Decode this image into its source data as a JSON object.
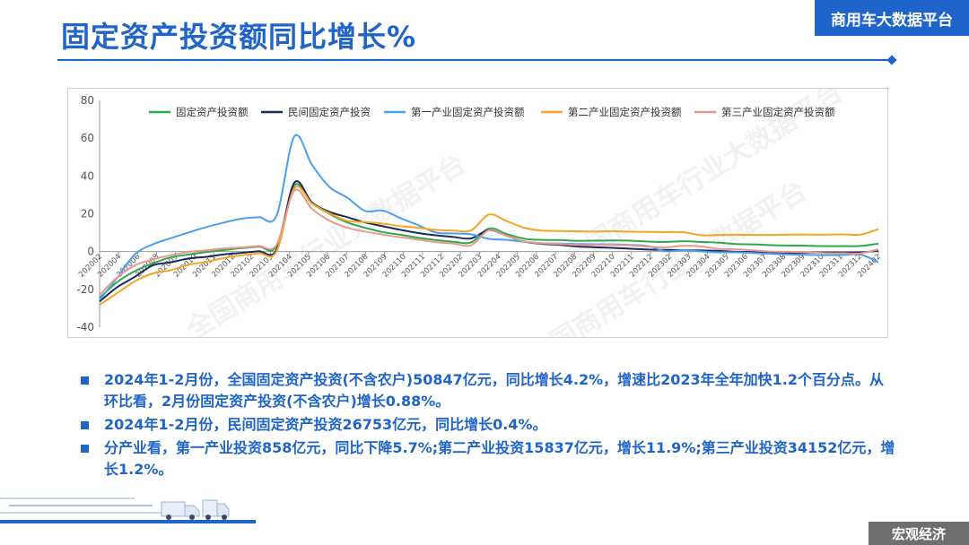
{
  "header": {
    "title": "固定资产投资额同比增长%",
    "brand": "商用车大数据平台"
  },
  "footer": {
    "tag": "宏观经济"
  },
  "watermark": {
    "text": "全国商用车行业大数据平台"
  },
  "bullets": [
    "2024年1-2月份，全国固定资产投资(不含农户)50847亿元，同比增长4.2%，增速比2023年全年加快1.2个百分点。从环比看，2月份固定资产投资(不含农户)增长0.88%。",
    "2024年1-2月份，民间固定资产投资26753亿元，同比增长0.4%。",
    "分产业看，第一产业投资858亿元，同比下降5.7%;第二产业投资15837亿元，增长11.9%;第三产业投资34152亿元，增长1.2%。"
  ],
  "colors": {
    "accent": "#1f64c8",
    "footer_bg": "#6e6e6e"
  },
  "chart_data": {
    "type": "line",
    "title": "",
    "xlabel": "",
    "ylabel": "",
    "ylim": [
      -40,
      80
    ],
    "yticks": [
      -40,
      -20,
      0,
      20,
      40,
      60,
      80
    ],
    "grid": false,
    "legend_position": "top",
    "x": [
      "202002",
      "202003",
      "202004",
      "202005",
      "202006",
      "202007",
      "202008",
      "202009",
      "202010",
      "202011",
      "202012",
      "202102",
      "202103",
      "202104",
      "202105",
      "202106",
      "202107",
      "202108",
      "202109",
      "202110",
      "202111",
      "202112",
      "202202",
      "202203",
      "202204",
      "202205",
      "202206",
      "202207",
      "202208",
      "202209",
      "202210",
      "202211",
      "202212",
      "202302",
      "202303",
      "202304",
      "202305",
      "202306",
      "202307",
      "202308",
      "202309",
      "202310",
      "202311",
      "202312",
      "202402"
    ],
    "xtick_labels": [
      "202002",
      "202004",
      "202006",
      "202008",
      "202009",
      "202010",
      "202011",
      "202012",
      "202102",
      "202103",
      "202104",
      "202105",
      "202106",
      "202107",
      "202108",
      "202109",
      "202110",
      "202111",
      "202112",
      "202202",
      "202203",
      "202204",
      "202205",
      "202206",
      "202207",
      "202208",
      "202209",
      "202210",
      "202211",
      "202212",
      "202302",
      "202303",
      "202304",
      "202305",
      "202306",
      "202307",
      "202308",
      "202309",
      "202310",
      "202311",
      "202312",
      "202402"
    ],
    "series": [
      {
        "name": "固定资产投资额",
        "color": "#2ea84f",
        "values": [
          -24.5,
          -16.1,
          -10.3,
          -6.3,
          -3.1,
          -1.6,
          -0.3,
          0.8,
          1.8,
          2.6,
          2.9,
          35.0,
          25.6,
          19.9,
          15.4,
          12.6,
          10.3,
          8.9,
          7.3,
          6.1,
          5.2,
          4.9,
          12.2,
          9.3,
          6.8,
          6.2,
          6.1,
          5.7,
          5.8,
          5.9,
          5.8,
          5.3,
          5.1,
          5.5,
          5.1,
          4.7,
          4.0,
          3.8,
          3.4,
          3.2,
          3.1,
          2.9,
          2.9,
          3.0,
          4.2
        ]
      },
      {
        "name": "民间固定资产投资",
        "color": "#1b2a5c",
        "values": [
          -26.4,
          -18.8,
          -13.3,
          -7.3,
          -5.7,
          -3.7,
          -2.8,
          -1.5,
          -0.7,
          0.2,
          1.0,
          36.4,
          26.0,
          21.0,
          18.2,
          15.4,
          13.4,
          11.5,
          9.8,
          8.6,
          7.7,
          7.0,
          11.4,
          8.4,
          5.3,
          4.1,
          3.5,
          2.7,
          2.3,
          2.0,
          1.5,
          1.1,
          0.9,
          0.8,
          0.6,
          0.4,
          -0.1,
          -0.2,
          -0.5,
          -0.7,
          -0.6,
          -0.5,
          -0.5,
          -0.4,
          0.4
        ]
      },
      {
        "name": "第一产业固定资产投资额",
        "color": "#4a9ff0",
        "values": [
          -25.6,
          -13.8,
          -1.4,
          3.8,
          7.0,
          10.0,
          12.9,
          15.3,
          17.4,
          18.2,
          19.1,
          60.9,
          45.9,
          34.1,
          28.5,
          21.5,
          21.7,
          17.7,
          14.0,
          10.1,
          9.6,
          9.1,
          6.7,
          6.2,
          5.2,
          4.4,
          4.2,
          4.0,
          3.9,
          3.8,
          3.5,
          2.9,
          0.2,
          0.8,
          0.1,
          -0.4,
          -0.4,
          -0.8,
          -1.2,
          -1.5,
          -1.7,
          -1.9,
          -1.8,
          -1.6,
          -5.7
        ]
      },
      {
        "name": "第二产业固定资产投资额",
        "color": "#f5a623",
        "values": [
          -28.2,
          -21.9,
          -15.7,
          -11.6,
          -9.9,
          -7.0,
          -5.5,
          -3.4,
          -2.0,
          -0.9,
          0.1,
          33.5,
          25.4,
          20.2,
          16.3,
          15.7,
          14.8,
          13.5,
          12.6,
          11.5,
          11.1,
          11.3,
          19.6,
          16.1,
          12.6,
          11.1,
          10.9,
          10.7,
          10.6,
          10.8,
          10.5,
          10.4,
          10.3,
          10.2,
          8.6,
          8.8,
          8.9,
          8.8,
          8.8,
          9.0,
          9.0,
          9.0,
          9.1,
          9.0,
          11.9
        ]
      },
      {
        "name": "第三产业固定资产投资额",
        "color": "#e8998d",
        "values": [
          -23.0,
          -13.6,
          -7.3,
          -4.2,
          -2.0,
          -0.2,
          0.7,
          1.7,
          2.2,
          2.9,
          3.6,
          32.2,
          22.6,
          16.3,
          12.6,
          10.6,
          9.0,
          7.6,
          6.3,
          5.0,
          4.2,
          3.4,
          11.3,
          8.4,
          5.4,
          4.4,
          4.0,
          3.5,
          3.5,
          3.5,
          3.3,
          2.6,
          2.3,
          3.1,
          2.7,
          1.4,
          1.2,
          0.6,
          0.0,
          -0.1,
          -0.4,
          -0.8,
          -0.9,
          -0.9,
          1.2
        ]
      }
    ]
  }
}
